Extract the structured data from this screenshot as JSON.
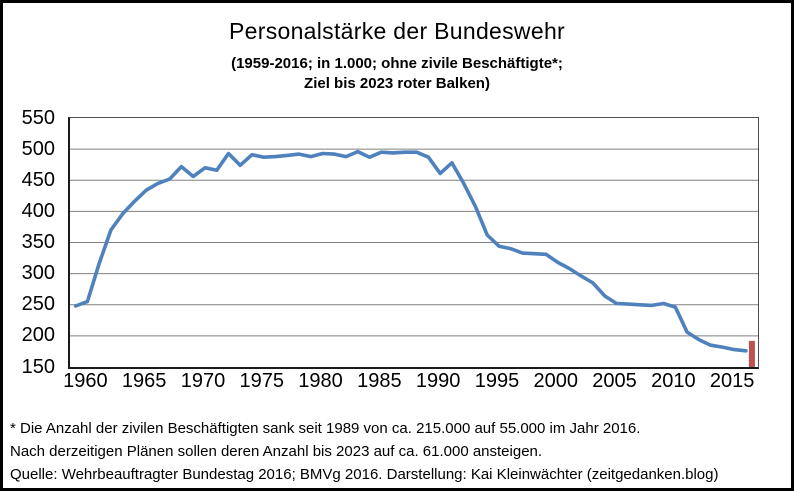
{
  "header": {
    "title": "Personalstärke der Bundeswehr",
    "subtitle_line1": "(1959-2016; in 1.000; ohne zivile Beschäftigte*;",
    "subtitle_line2": "Ziel bis 2023 roter Balken)"
  },
  "chart_data": {
    "type": "line",
    "title": "Personalstärke der Bundeswehr",
    "xlabel": "",
    "ylabel": "",
    "x": [
      1959,
      1960,
      1961,
      1962,
      1963,
      1964,
      1965,
      1966,
      1967,
      1968,
      1969,
      1970,
      1971,
      1972,
      1973,
      1974,
      1975,
      1976,
      1977,
      1978,
      1979,
      1980,
      1981,
      1982,
      1983,
      1984,
      1985,
      1986,
      1987,
      1988,
      1989,
      1990,
      1991,
      1992,
      1993,
      1994,
      1995,
      1996,
      1997,
      1998,
      1999,
      2000,
      2001,
      2002,
      2003,
      2004,
      2005,
      2006,
      2007,
      2008,
      2009,
      2010,
      2011,
      2012,
      2013,
      2014,
      2015,
      2016
    ],
    "series": [
      {
        "name": "Personalstärke der Bundeswehr (in 1.000)",
        "values": [
          248,
          255,
          316,
          370,
          396,
          416,
          434,
          445,
          452,
          472,
          456,
          470,
          466,
          493,
          474,
          491,
          487,
          488,
          490,
          492,
          488,
          493,
          492,
          488,
          496,
          487,
          495,
          494,
          495,
          495,
          487,
          461,
          478,
          445,
          408,
          362,
          344,
          340,
          333,
          332,
          331,
          318,
          308,
          296,
          285,
          264,
          252,
          251,
          250,
          249,
          252,
          246,
          206,
          194,
          185,
          182,
          178,
          176
        ]
      }
    ],
    "target_bar": {
      "label": "Ziel bis 2023",
      "value": 192
    },
    "ylim": [
      150,
      550
    ],
    "yticks": [
      150,
      200,
      250,
      300,
      350,
      400,
      450,
      500,
      550
    ],
    "xticks": [
      1960,
      1965,
      1970,
      1975,
      1980,
      1985,
      1990,
      1995,
      2000,
      2005,
      2010,
      2015
    ],
    "grid": true,
    "legend": "none",
    "colors": {
      "line": "#4F81BD",
      "target": "#C0504D",
      "gridline": "#808080"
    }
  },
  "footer": {
    "lines": [
      "* Die Anzahl der zivilen Beschäftigten sank seit 1989 von ca. 215.000 auf 55.000 im Jahr 2016.",
      "Nach derzeitigen Plänen sollen deren Anzahl bis 2023 auf ca. 61.000 ansteigen.",
      "Quelle: Wehrbeauftragter Bundestag 2016; BMVg 2016. Darstellung: Kai Kleinwächter (zeitgedanken.blog)"
    ]
  }
}
